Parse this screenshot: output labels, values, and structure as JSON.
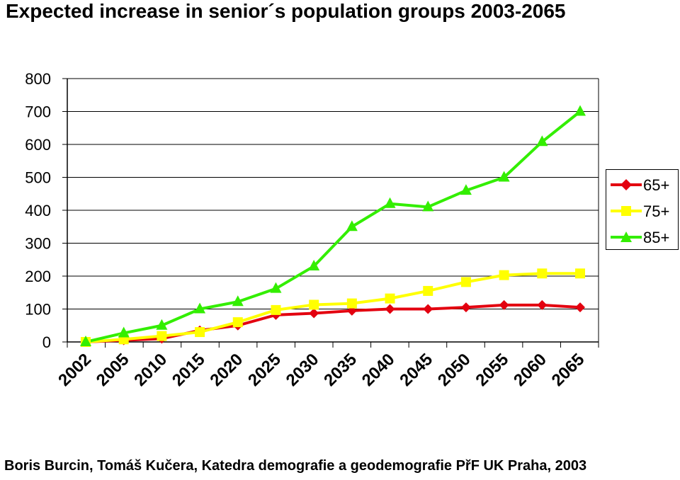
{
  "title": "Expected increase in senior´s population groups 2003-2065",
  "footer": "Boris Burcin, Tomáš Kučera, Katedra demografie a geodemografie PřF UK Praha, 2003",
  "chart_data": {
    "type": "line",
    "title": "Expected increase in senior´s population groups 2003-2065",
    "xlabel": "",
    "ylabel": "",
    "ylim": [
      0,
      800
    ],
    "yticks": [
      0,
      100,
      200,
      300,
      400,
      500,
      600,
      700,
      800
    ],
    "categories": [
      "2002",
      "2005",
      "2010",
      "2015",
      "2020",
      "2025",
      "2030",
      "2035",
      "2040",
      "2045",
      "2050",
      "2055",
      "2060",
      "2065"
    ],
    "grid": true,
    "legend_position": "right",
    "series": [
      {
        "name": "65+",
        "color": "#e3000f",
        "marker": "diamond",
        "values": [
          0,
          5,
          10,
          35,
          50,
          82,
          87,
          95,
          100,
          100,
          105,
          112,
          112,
          105
        ]
      },
      {
        "name": "75+",
        "color": "#ffff00",
        "marker": "square",
        "values": [
          0,
          8,
          18,
          30,
          60,
          97,
          113,
          117,
          132,
          155,
          182,
          203,
          208,
          208
        ]
      },
      {
        "name": "85+",
        "color": "#33ee00",
        "marker": "triangle",
        "values": [
          0,
          27,
          50,
          100,
          122,
          162,
          230,
          350,
          420,
          410,
          460,
          500,
          608,
          700
        ]
      }
    ]
  }
}
